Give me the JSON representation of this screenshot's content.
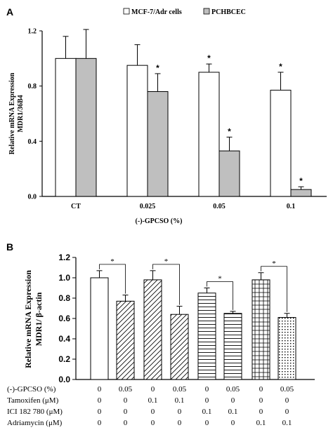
{
  "panels": {
    "a_label": "A",
    "b_label": "B"
  },
  "chart_data": [
    {
      "type": "bar",
      "xlabel": "(-)-GPCSO (%)",
      "ylabel_line1": "Relative mRNA Expression",
      "ylabel_line2": "MDR1/36B4",
      "categories": [
        "CT",
        "0.025",
        "0.05",
        "0.1"
      ],
      "ylim": [
        0,
        1.2
      ],
      "yticks": [
        "0.0",
        "0.4",
        "0.8",
        "1.2"
      ],
      "series": [
        {
          "name": "MCF-7/Adr cells",
          "fill": "#ffffff",
          "values": [
            1.0,
            0.95,
            0.9,
            0.77
          ],
          "errors": [
            0.16,
            0.15,
            0.06,
            0.13
          ],
          "significant": [
            false,
            false,
            true,
            true
          ]
        },
        {
          "name": "PCHBCEC",
          "fill": "#bfbfbf",
          "values": [
            1.0,
            0.76,
            0.33,
            0.05
          ],
          "errors": [
            0.21,
            0.13,
            0.1,
            0.02
          ],
          "significant": [
            false,
            true,
            true,
            true
          ]
        }
      ],
      "significance_marker": "*",
      "legend_position": "top"
    },
    {
      "type": "bar",
      "ylabel_line1": "Relative mRNA Expression",
      "ylabel_line2": "MDR1/ β-actin",
      "ylim": [
        0,
        1.2
      ],
      "yticks": [
        "0.0",
        "0.2",
        "0.4",
        "0.6",
        "0.8",
        "1.0",
        "1.2"
      ],
      "values": [
        1.0,
        0.77,
        0.98,
        0.64,
        0.85,
        0.65,
        0.98,
        0.61
      ],
      "errors": [
        0.07,
        0.06,
        0.09,
        0.08,
        0.05,
        0.02,
        0.07,
        0.04
      ],
      "patterns": [
        "none",
        "diag",
        "diag",
        "diag",
        "hlines",
        "hlines",
        "grid",
        "dots"
      ],
      "brackets": [
        [
          0,
          1
        ],
        [
          2,
          3
        ],
        [
          4,
          5
        ],
        [
          6,
          7
        ]
      ],
      "significance_marker": "*",
      "table": {
        "rows": [
          {
            "label": "(-)-GPCSO   (%)",
            "values": [
              "0",
              "0.05",
              "0",
              "0.05",
              "0",
              "0.05",
              "0",
              "0.05"
            ]
          },
          {
            "label": "Tamoxifen   (μM)",
            "values": [
              "0",
              "0",
              "0.1",
              "0.1",
              "0",
              "0",
              "0",
              "0"
            ]
          },
          {
            "label": "ICI 182 780 (μM)",
            "values": [
              "0",
              "0",
              "0",
              "0",
              "0.1",
              "0.1",
              "0",
              "0"
            ]
          },
          {
            "label": "Adriamycin (μM)",
            "values": [
              "0",
              "0",
              "0",
              "0",
              "0",
              "0",
              "0.1",
              "0.1"
            ]
          }
        ]
      }
    }
  ]
}
